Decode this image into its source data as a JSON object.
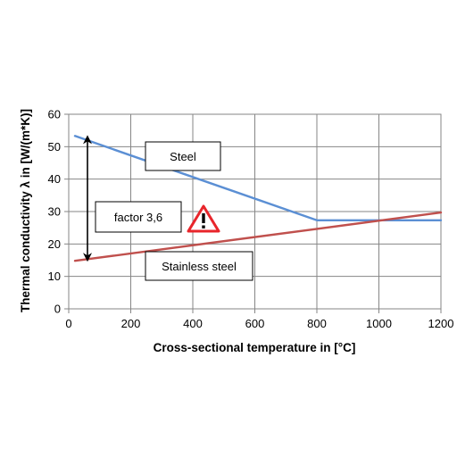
{
  "chart_data": {
    "type": "line",
    "xlabel": "Cross-sectional temperature in [°C]",
    "ylabel": "Thermal conductivity λ in [W/(m*K)]",
    "xlim": [
      0,
      1200
    ],
    "ylim": [
      0,
      60
    ],
    "xticks": [
      0,
      200,
      400,
      600,
      800,
      1000,
      1200
    ],
    "yticks": [
      0,
      10,
      20,
      30,
      40,
      50,
      60
    ],
    "grid": true,
    "series": [
      {
        "name": "Steel",
        "color": "#5b8fd4",
        "x": [
          20,
          800,
          1200
        ],
        "y": [
          53.3,
          27.3,
          27.3
        ]
      },
      {
        "name": "Stainless steel",
        "color": "#c0504d",
        "x": [
          20,
          1200
        ],
        "y": [
          14.8,
          29.7
        ]
      }
    ],
    "annotations": [
      {
        "id": "steel",
        "text": "Steel"
      },
      {
        "id": "stainless",
        "text": "Stainless steel"
      },
      {
        "id": "factor",
        "text": "factor 3,6"
      }
    ],
    "warning_icon": "warning-triangle-icon",
    "warning_color": "#e8252b"
  }
}
